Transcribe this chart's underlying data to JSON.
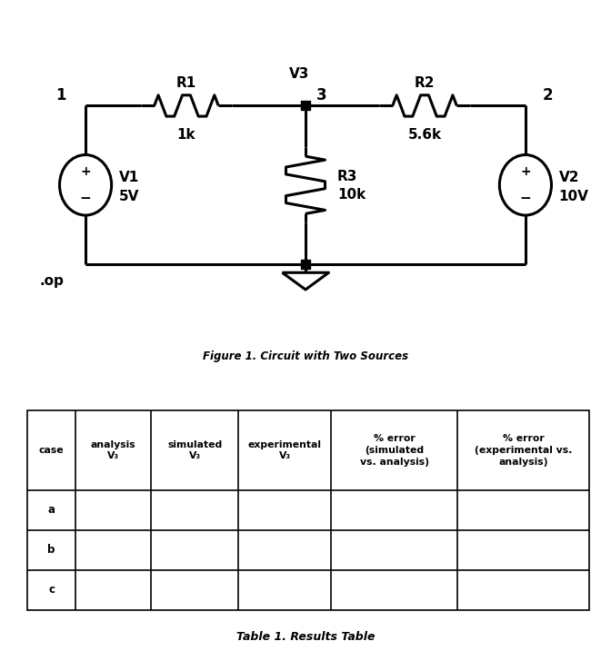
{
  "fig_width": 6.72,
  "fig_height": 7.17,
  "dpi": 100,
  "bg_color": "#ffffff",
  "circuit_caption": "Figure 1. Circuit with Two Sources",
  "table_caption": "Table 1. Results Table",
  "table_headers_line1": [
    "case",
    "analysis",
    "simulated",
    "experimental",
    "% error",
    "% error"
  ],
  "table_headers_line2": [
    "",
    "V₃",
    "V₃",
    "V₃",
    "(simulated",
    "(experimental vs."
  ],
  "table_headers_line3": [
    "",
    "",
    "",
    "",
    "vs. analysis)",
    "analysis)"
  ],
  "table_rows": [
    "a",
    "b",
    "c"
  ],
  "node1_label": "1",
  "node2_label": "2",
  "node3_label": "3",
  "v3_label": "V3",
  "r1_label": "R1",
  "r1_val": "1k",
  "r2_label": "R2",
  "r2_val": "5.6k",
  "r3_label": "R3",
  "r3_val": "10k",
  "v1_line1": "V1",
  "v1_line2": "5V",
  "v2_line1": "V2",
  "v2_line2": "10V",
  "op_label": ".op",
  "lw_wire": 2.2,
  "lw_component": 2.2,
  "lw_table": 1.2
}
